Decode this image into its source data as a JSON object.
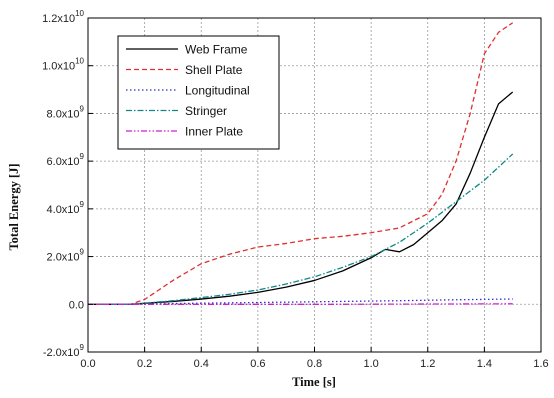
{
  "chart_data": {
    "type": "line",
    "xlabel": "Time [s]",
    "ylabel": "Total Energy [J]",
    "xlim": [
      0.0,
      1.6
    ],
    "ylim": [
      -2000000000.0,
      12000000000.0
    ],
    "grid": true,
    "legend_position": "top-left",
    "x_ticks": [
      {
        "value": 0.0,
        "label": "0.0"
      },
      {
        "value": 0.2,
        "label": "0.2"
      },
      {
        "value": 0.4,
        "label": "0.4"
      },
      {
        "value": 0.6,
        "label": "0.6"
      },
      {
        "value": 0.8,
        "label": "0.8"
      },
      {
        "value": 1.0,
        "label": "1.0"
      },
      {
        "value": 1.2,
        "label": "1.2"
      },
      {
        "value": 1.4,
        "label": "1.4"
      },
      {
        "value": 1.6,
        "label": "1.6"
      }
    ],
    "y_ticks": [
      {
        "value": -2000000000.0,
        "mant": "-2.0x10",
        "exp": "9"
      },
      {
        "value": 0.0,
        "mant": "0.0",
        "exp": ""
      },
      {
        "value": 2000000000.0,
        "mant": "2.0x10",
        "exp": "9"
      },
      {
        "value": 4000000000.0,
        "mant": "4.0x10",
        "exp": "9"
      },
      {
        "value": 6000000000.0,
        "mant": "6.0x10",
        "exp": "9"
      },
      {
        "value": 8000000000.0,
        "mant": "8.0x10",
        "exp": "9"
      },
      {
        "value": 10000000000.0,
        "mant": "1.0x10",
        "exp": "10"
      },
      {
        "value": 12000000000.0,
        "mant": "1.2x10",
        "exp": "10"
      }
    ],
    "series": [
      {
        "name": "Web Frame",
        "color": "#000000",
        "dash": "",
        "x": [
          0.0,
          0.15,
          0.2,
          0.3,
          0.4,
          0.5,
          0.6,
          0.7,
          0.8,
          0.9,
          1.0,
          1.05,
          1.1,
          1.15,
          1.2,
          1.25,
          1.3,
          1.35,
          1.4,
          1.45,
          1.5
        ],
        "y": [
          0.0,
          0.0,
          40000000.0,
          120000000.0,
          220000000.0,
          340000000.0,
          500000000.0,
          720000000.0,
          1000000000.0,
          1400000000.0,
          1950000000.0,
          2300000000.0,
          2200000000.0,
          2500000000.0,
          3000000000.0,
          3500000000.0,
          4200000000.0,
          5500000000.0,
          7000000000.0,
          8400000000.0,
          8900000000.0
        ]
      },
      {
        "name": "Shell Plate",
        "color": "#e03030",
        "dash": "5,3",
        "x": [
          0.0,
          0.15,
          0.2,
          0.3,
          0.4,
          0.5,
          0.6,
          0.7,
          0.8,
          0.9,
          1.0,
          1.1,
          1.2,
          1.25,
          1.3,
          1.35,
          1.4,
          1.45,
          1.5
        ],
        "y": [
          0.0,
          0.0,
          200000000.0,
          1000000000.0,
          1700000000.0,
          2100000000.0,
          2400000000.0,
          2550000000.0,
          2750000000.0,
          2850000000.0,
          3000000000.0,
          3200000000.0,
          3800000000.0,
          4600000000.0,
          6000000000.0,
          8000000000.0,
          10500000000.0,
          11400000000.0,
          11800000000.0
        ]
      },
      {
        "name": "Longitudinal",
        "color": "#3030c0",
        "dash": "1.5,2.5",
        "x": [
          0.0,
          0.15,
          0.3,
          0.5,
          0.7,
          0.9,
          1.1,
          1.3,
          1.5
        ],
        "y": [
          0.0,
          0.0,
          30000000.0,
          60000000.0,
          90000000.0,
          120000000.0,
          150000000.0,
          190000000.0,
          220000000.0
        ]
      },
      {
        "name": "Stringer",
        "color": "#108888",
        "dash": "6,2,1.5,2",
        "x": [
          0.0,
          0.15,
          0.2,
          0.3,
          0.4,
          0.5,
          0.6,
          0.7,
          0.8,
          0.9,
          1.0,
          1.1,
          1.2,
          1.3,
          1.4,
          1.5
        ],
        "y": [
          0.0,
          0.0,
          50000000.0,
          150000000.0,
          280000000.0,
          420000000.0,
          600000000.0,
          850000000.0,
          1150000000.0,
          1550000000.0,
          2000000000.0,
          2600000000.0,
          3400000000.0,
          4300000000.0,
          5200000000.0,
          6300000000.0
        ]
      },
      {
        "name": "Inner Plate",
        "color": "#d020d0",
        "dash": "6,2,1.5,2,1.5,2",
        "x": [
          0.0,
          0.3,
          0.6,
          0.9,
          1.2,
          1.5
        ],
        "y": [
          0.0,
          0.0,
          0.0,
          0.0,
          10000000.0,
          20000000.0
        ]
      }
    ]
  }
}
